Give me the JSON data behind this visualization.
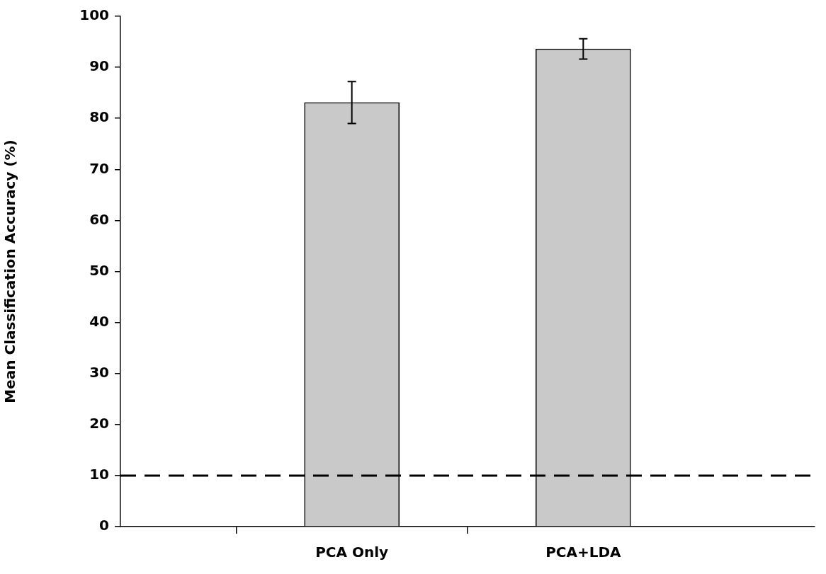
{
  "chart_data": {
    "type": "bar",
    "ylabel": "Mean Classification Accuracy (%)",
    "categories": [
      null,
      "PCA Only",
      "PCA+LDA",
      null
    ],
    "values": [
      null,
      83.1,
      93.6,
      null
    ],
    "errors": [
      null,
      4.1,
      2.0,
      null
    ],
    "color": "#c9c9c9",
    "ylim": [
      0,
      100
    ],
    "yticks": [
      0,
      10,
      20,
      30,
      40,
      50,
      60,
      70,
      80,
      90,
      100
    ],
    "ref_lines": [
      {
        "axis": "y",
        "value": 10,
        "color": "#000000",
        "line_style": "dashed"
      }
    ],
    "grid": false,
    "legend": false
  }
}
